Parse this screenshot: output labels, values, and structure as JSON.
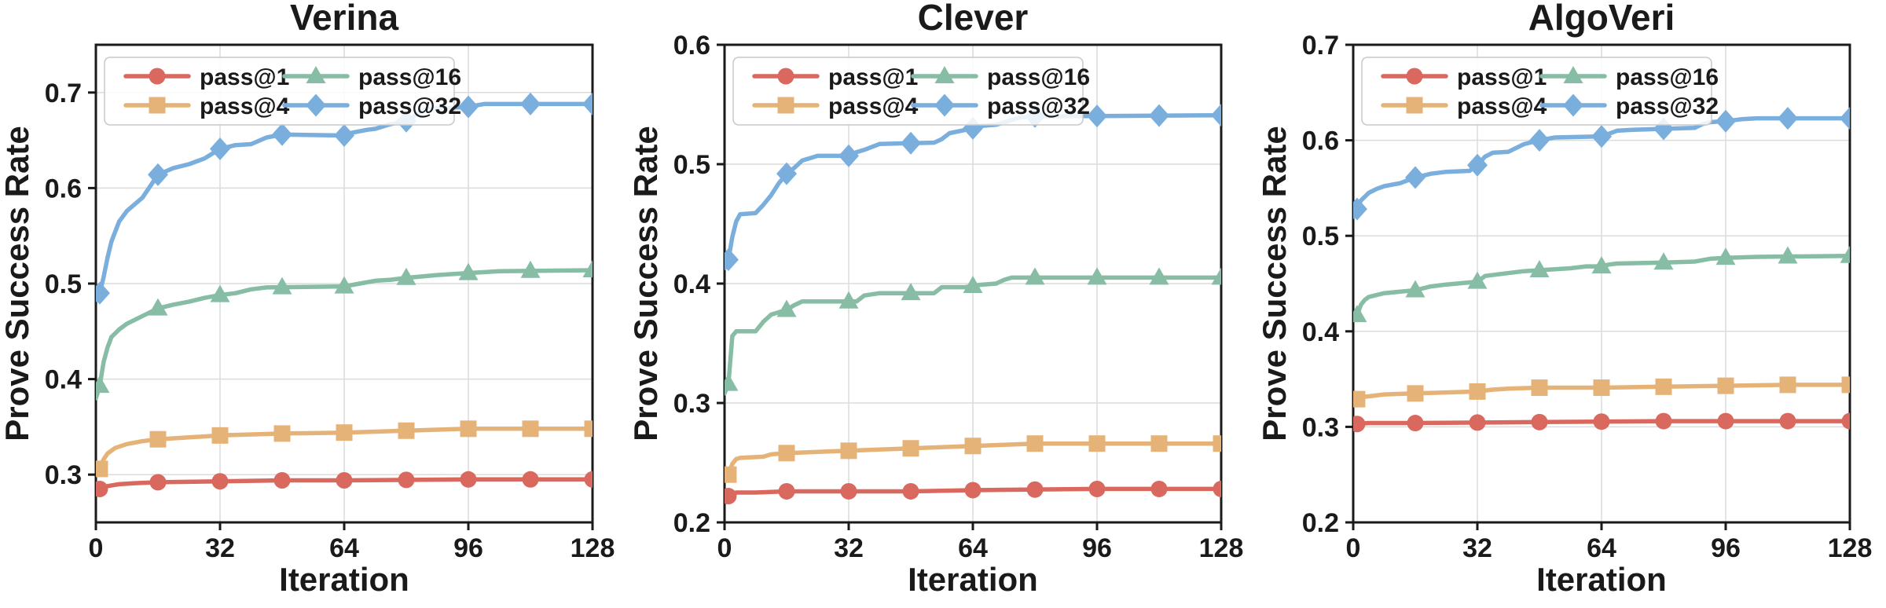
{
  "figure": {
    "background": "#ffffff",
    "text_color": "#1a1a1a",
    "grid_color": "#dcdcdc",
    "spine_color": "#1a1a1a",
    "legend_border_color": "#c9c9c9",
    "legend_background": "rgba(255,255,255,0.85)"
  },
  "chart_data": [
    {
      "type": "line",
      "title": "Verina",
      "xlabel": "Iteration",
      "ylabel": "Prove Success Rate",
      "xlim": [
        0,
        128
      ],
      "xticks": [
        0,
        32,
        64,
        96,
        128
      ],
      "ylim": [
        0.25,
        0.75
      ],
      "yticks": [
        0.3,
        0.4,
        0.5,
        0.6,
        0.7
      ],
      "grid": true,
      "legend": {
        "position": "upper-left",
        "columns": 2,
        "entries": [
          "pass@1",
          "pass@4",
          "pass@16",
          "pass@32"
        ]
      },
      "marker_x": [
        1,
        16,
        32,
        48,
        64,
        80,
        96,
        112,
        128
      ],
      "series": [
        {
          "name": "pass@1",
          "color": "#d9685e",
          "marker": "circle",
          "x": [
            0,
            1,
            3,
            6,
            10,
            16,
            32,
            48,
            64,
            96,
            128
          ],
          "y": [
            0.284,
            0.285,
            0.288,
            0.29,
            0.291,
            0.292,
            0.293,
            0.294,
            0.294,
            0.295,
            0.295
          ]
        },
        {
          "name": "pass@4",
          "color": "#e5b377",
          "marker": "square",
          "x": [
            0,
            1,
            2,
            3,
            5,
            8,
            12,
            16,
            24,
            32,
            48,
            64,
            72,
            80,
            96,
            128
          ],
          "y": [
            0.303,
            0.306,
            0.316,
            0.322,
            0.328,
            0.332,
            0.335,
            0.337,
            0.339,
            0.341,
            0.343,
            0.344,
            0.345,
            0.346,
            0.348,
            0.348
          ]
        },
        {
          "name": "pass@16",
          "color": "#86bda4",
          "marker": "triangle",
          "x": [
            0,
            1,
            2,
            3,
            4,
            6,
            8,
            12,
            16,
            20,
            24,
            28,
            32,
            36,
            40,
            44,
            64,
            68,
            72,
            76,
            80,
            88,
            96,
            104,
            128
          ],
          "y": [
            0.38,
            0.393,
            0.418,
            0.433,
            0.444,
            0.452,
            0.458,
            0.466,
            0.474,
            0.478,
            0.481,
            0.485,
            0.488,
            0.49,
            0.494,
            0.496,
            0.497,
            0.5,
            0.503,
            0.504,
            0.506,
            0.509,
            0.511,
            0.513,
            0.514
          ]
        },
        {
          "name": "pass@32",
          "color": "#7aaedd",
          "marker": "diamond",
          "x": [
            0,
            1,
            2,
            3,
            4,
            6,
            8,
            10,
            12,
            16,
            20,
            24,
            28,
            32,
            36,
            40,
            44,
            48,
            64,
            66,
            70,
            72,
            76,
            80,
            82,
            84,
            86,
            96,
            100,
            128
          ],
          "y": [
            0.483,
            0.49,
            0.507,
            0.527,
            0.544,
            0.565,
            0.576,
            0.583,
            0.59,
            0.614,
            0.621,
            0.625,
            0.631,
            0.641,
            0.645,
            0.646,
            0.653,
            0.656,
            0.655,
            0.658,
            0.661,
            0.662,
            0.667,
            0.67,
            0.675,
            0.681,
            0.683,
            0.685,
            0.688,
            0.688
          ]
        }
      ]
    },
    {
      "type": "line",
      "title": "Clever",
      "xlabel": "Iteration",
      "ylabel": "Prove Success Rate",
      "xlim": [
        0,
        128
      ],
      "xticks": [
        0,
        32,
        64,
        96,
        128
      ],
      "ylim": [
        0.2,
        0.6
      ],
      "yticks": [
        0.2,
        0.3,
        0.4,
        0.5,
        0.6
      ],
      "grid": true,
      "legend": {
        "position": "upper-left",
        "columns": 2,
        "entries": [
          "pass@1",
          "pass@4",
          "pass@16",
          "pass@32"
        ]
      },
      "marker_x": [
        1,
        16,
        32,
        48,
        64,
        80,
        96,
        112,
        128
      ],
      "series": [
        {
          "name": "pass@1",
          "color": "#d9685e",
          "marker": "circle",
          "x": [
            0,
            1,
            3,
            8,
            16,
            48,
            64,
            96,
            128
          ],
          "y": [
            0.22,
            0.222,
            0.225,
            0.225,
            0.226,
            0.226,
            0.227,
            0.228,
            0.228
          ]
        },
        {
          "name": "pass@4",
          "color": "#e5b377",
          "marker": "square",
          "x": [
            0,
            1,
            2,
            3,
            4,
            10,
            12,
            16,
            24,
            32,
            40,
            48,
            56,
            64,
            72,
            80,
            128
          ],
          "y": [
            0.236,
            0.24,
            0.249,
            0.253,
            0.254,
            0.255,
            0.257,
            0.258,
            0.259,
            0.26,
            0.261,
            0.262,
            0.263,
            0.264,
            0.265,
            0.266,
            0.266
          ]
        },
        {
          "name": "pass@16",
          "color": "#86bda4",
          "marker": "triangle",
          "x": [
            0,
            1,
            2,
            3,
            8,
            10,
            12,
            14,
            16,
            18,
            20,
            34,
            36,
            40,
            54,
            56,
            62,
            64,
            66,
            70,
            72,
            74,
            128
          ],
          "y": [
            0.308,
            0.316,
            0.356,
            0.36,
            0.36,
            0.368,
            0.374,
            0.376,
            0.378,
            0.382,
            0.385,
            0.385,
            0.39,
            0.392,
            0.392,
            0.397,
            0.397,
            0.398,
            0.399,
            0.4,
            0.403,
            0.405,
            0.405
          ]
        },
        {
          "name": "pass@32",
          "color": "#7aaedd",
          "marker": "diamond",
          "x": [
            0,
            1,
            2,
            3,
            4,
            8,
            10,
            12,
            14,
            16,
            18,
            20,
            24,
            32,
            34,
            36,
            40,
            54,
            56,
            58,
            64,
            66,
            70,
            74,
            76,
            80,
            128
          ],
          "y": [
            0.413,
            0.42,
            0.439,
            0.452,
            0.458,
            0.459,
            0.466,
            0.474,
            0.484,
            0.492,
            0.497,
            0.503,
            0.507,
            0.507,
            0.51,
            0.512,
            0.517,
            0.518,
            0.521,
            0.526,
            0.53,
            0.532,
            0.533,
            0.537,
            0.539,
            0.54,
            0.541
          ]
        }
      ]
    },
    {
      "type": "line",
      "title": "AlgoVeri",
      "xlabel": "Iteration",
      "ylabel": "Prove Success Rate",
      "xlim": [
        0,
        128
      ],
      "xticks": [
        0,
        32,
        64,
        96,
        128
      ],
      "ylim": [
        0.2,
        0.7
      ],
      "yticks": [
        0.2,
        0.3,
        0.4,
        0.5,
        0.6,
        0.7
      ],
      "grid": true,
      "legend": {
        "position": "upper-left",
        "columns": 2,
        "entries": [
          "pass@1",
          "pass@4",
          "pass@16",
          "pass@32"
        ]
      },
      "marker_x": [
        1,
        16,
        32,
        48,
        64,
        80,
        96,
        112,
        128
      ],
      "series": [
        {
          "name": "pass@1",
          "color": "#d9685e",
          "marker": "circle",
          "x": [
            0,
            1,
            4,
            16,
            48,
            80,
            128
          ],
          "y": [
            0.302,
            0.303,
            0.304,
            0.304,
            0.305,
            0.306,
            0.306
          ]
        },
        {
          "name": "pass@4",
          "color": "#e5b377",
          "marker": "square",
          "x": [
            0,
            1,
            2,
            4,
            8,
            16,
            24,
            32,
            36,
            40,
            48,
            64,
            80,
            96,
            112,
            128
          ],
          "y": [
            0.327,
            0.329,
            0.331,
            0.332,
            0.334,
            0.335,
            0.336,
            0.337,
            0.339,
            0.34,
            0.341,
            0.341,
            0.342,
            0.343,
            0.344,
            0.344
          ]
        },
        {
          "name": "pass@16",
          "color": "#86bda4",
          "marker": "triangle",
          "x": [
            0,
            1,
            2,
            3,
            4,
            8,
            16,
            20,
            24,
            32,
            34,
            38,
            44,
            48,
            56,
            60,
            64,
            66,
            68,
            80,
            88,
            92,
            96,
            104,
            128
          ],
          "y": [
            0.412,
            0.417,
            0.428,
            0.433,
            0.436,
            0.44,
            0.443,
            0.447,
            0.449,
            0.452,
            0.458,
            0.46,
            0.463,
            0.464,
            0.466,
            0.468,
            0.468,
            0.47,
            0.471,
            0.472,
            0.473,
            0.476,
            0.477,
            0.478,
            0.479
          ]
        },
        {
          "name": "pass@32",
          "color": "#7aaedd",
          "marker": "diamond",
          "x": [
            0,
            1,
            2,
            4,
            6,
            8,
            12,
            16,
            20,
            24,
            30,
            32,
            34,
            36,
            40,
            44,
            48,
            52,
            64,
            66,
            68,
            72,
            80,
            88,
            90,
            92,
            96,
            100,
            104,
            128
          ],
          "y": [
            0.52,
            0.528,
            0.537,
            0.545,
            0.549,
            0.552,
            0.555,
            0.561,
            0.565,
            0.567,
            0.568,
            0.574,
            0.583,
            0.587,
            0.588,
            0.596,
            0.6,
            0.603,
            0.604,
            0.607,
            0.61,
            0.611,
            0.612,
            0.613,
            0.617,
            0.619,
            0.62,
            0.622,
            0.623,
            0.623
          ]
        }
      ]
    }
  ]
}
